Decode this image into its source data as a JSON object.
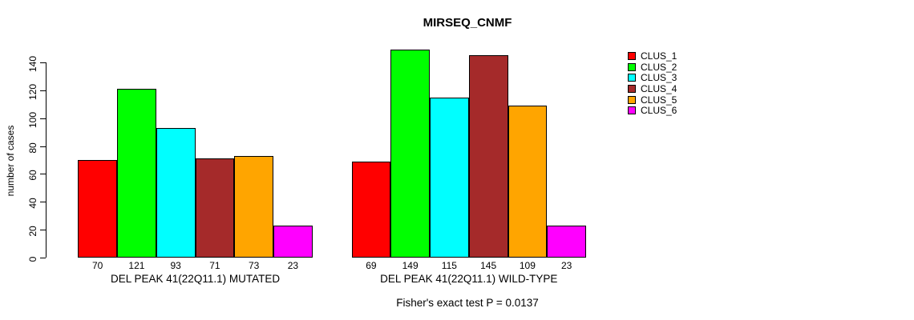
{
  "title": "MIRSEQ_CNMF",
  "chart_data": {
    "type": "bar",
    "title": "MIRSEQ_CNMF",
    "xlabel": "",
    "ylabel": "number of cases",
    "ylim": [
      0,
      140
    ],
    "yticks": [
      0,
      20,
      40,
      60,
      80,
      100,
      120,
      140
    ],
    "grid": false,
    "legend_position": "right",
    "categories": [
      "CLUS_1",
      "CLUS_2",
      "CLUS_3",
      "CLUS_4",
      "CLUS_5",
      "CLUS_6"
    ],
    "colors": [
      "#FF0000",
      "#00FF00",
      "#00FFFF",
      "#A52A2A",
      "#FFA500",
      "#FF00FF"
    ],
    "groups": [
      {
        "label": "DEL PEAK 41(22Q11.1) MUTATED",
        "values": [
          70,
          121,
          93,
          71,
          73,
          23
        ]
      },
      {
        "label": "DEL PEAK 41(22Q11.1) WILD-TYPE",
        "values": [
          69,
          149,
          115,
          145,
          109,
          23
        ]
      }
    ],
    "annotation": "Fisher's exact test P = 0.0137"
  }
}
